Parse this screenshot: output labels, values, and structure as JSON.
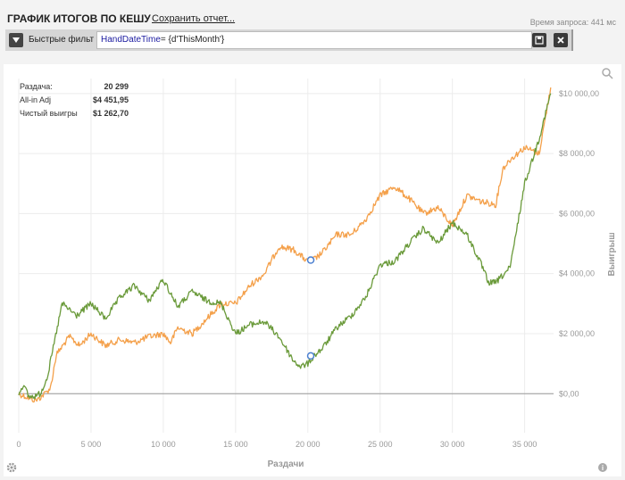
{
  "header": {
    "title": "ГРАФИК ИТОГОВ ПО КЕШУ",
    "save_label": "Сохранить отчет...",
    "request_time": "Время запроса: 441 мс"
  },
  "filter": {
    "label": "Быстрые фильт",
    "field": "HandDateTime",
    "operator": "= ",
    "value": "{d'ThisMonth'}"
  },
  "summary": [
    {
      "label": "Раздача:",
      "value": "20 299"
    },
    {
      "label": "All-in Adj",
      "value": "$4 451,95"
    },
    {
      "label": "Чистый выигры",
      "value": "$1 262,70"
    }
  ],
  "chart_data": {
    "type": "line",
    "xlabel": "Раздачи",
    "ylabel": "Выигрыш",
    "xlim": [
      0,
      37000
    ],
    "ylim": [
      -1300,
      10500
    ],
    "x_ticks": [
      0,
      5000,
      10000,
      15000,
      20000,
      25000,
      30000,
      35000
    ],
    "x_tick_labels": [
      "0",
      "5 000",
      "10 000",
      "15 000",
      "20 000",
      "25 000",
      "30 000",
      "35 000"
    ],
    "y_ticks": [
      0,
      2000,
      4000,
      6000,
      8000,
      10000
    ],
    "y_tick_labels": [
      "$0,00",
      "$2 000,00",
      "$4 000,00",
      "$6 000,00",
      "$8 000,00",
      "$10 000,00"
    ],
    "grid": true,
    "colors": {
      "series1": "#f4a04a",
      "series2": "#6a9a3a",
      "marker": "#4a7fd0",
      "zero": "#999999"
    },
    "series": [
      {
        "color": "#f4a04a",
        "x": [
          0,
          1000,
          1300,
          1800,
          2200,
          2600,
          3500,
          4200,
          5000,
          6000,
          7000,
          8000,
          9000,
          10000,
          10500,
          11000,
          12000,
          13000,
          14000,
          15000,
          16000,
          17000,
          18000,
          19000,
          20000,
          20500,
          21000,
          22000,
          23000,
          24000,
          25000,
          26000,
          27000,
          28000,
          29000,
          30000,
          31000,
          32000,
          33000,
          33500,
          34000,
          35000,
          36000,
          36800
        ],
        "values": [
          0,
          -200,
          -200,
          0,
          200,
          1300,
          1900,
          1600,
          2000,
          1600,
          1800,
          1700,
          1900,
          2000,
          1700,
          2200,
          2000,
          2500,
          3000,
          3000,
          3600,
          4000,
          4900,
          4800,
          4400,
          4500,
          4700,
          5300,
          5300,
          5800,
          6600,
          6900,
          6500,
          6000,
          6200,
          5600,
          6600,
          6400,
          6300,
          7500,
          7800,
          8200,
          8000,
          10200
        ]
      },
      {
        "color": "#6a9a3a",
        "x": [
          0,
          300,
          700,
          1000,
          1500,
          2000,
          2500,
          3000,
          4000,
          5000,
          6000,
          7000,
          8000,
          9000,
          10000,
          11000,
          12000,
          13000,
          14000,
          15000,
          16000,
          17000,
          18000,
          19000,
          19500,
          20000,
          20500,
          21000,
          22000,
          23000,
          24000,
          25000,
          26000,
          27000,
          28000,
          29000,
          30000,
          31000,
          32000,
          32500,
          33000,
          34000,
          35000,
          36000,
          36800
        ],
        "values": [
          0,
          300,
          -100,
          -100,
          0,
          600,
          1800,
          3000,
          2600,
          3000,
          2500,
          3200,
          3600,
          3100,
          3800,
          2900,
          3400,
          3100,
          3000,
          2000,
          2300,
          2400,
          1900,
          1100,
          900,
          1000,
          1300,
          1500,
          2200,
          2600,
          3200,
          4300,
          4400,
          5000,
          5500,
          5000,
          5700,
          5300,
          4300,
          3700,
          3700,
          4200,
          7000,
          8500,
          10000
        ]
      }
    ],
    "markers": [
      {
        "x": 20200,
        "y": 4450
      },
      {
        "x": 20200,
        "y": 1260
      }
    ]
  }
}
